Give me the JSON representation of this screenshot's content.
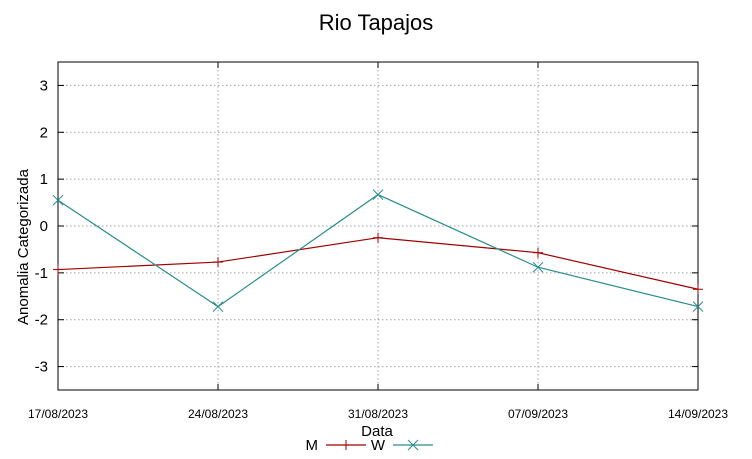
{
  "chart_data": {
    "type": "line",
    "title": "Rio Tapajos",
    "xlabel": "Data",
    "ylabel": "Anomalia Categorizada",
    "categories": [
      "17/08/2023",
      "24/08/2023",
      "31/08/2023",
      "07/09/2023",
      "14/09/2023"
    ],
    "yticks": [
      3,
      2,
      1,
      0,
      -1,
      -2,
      -3
    ],
    "ylim": [
      -3.5,
      3.5
    ],
    "grid": true,
    "legend_position": "bottom",
    "series": [
      {
        "name": "M",
        "color": "#a00000",
        "marker": "plus",
        "values": [
          -0.93,
          -0.77,
          -0.25,
          -0.57,
          -1.35
        ]
      },
      {
        "name": "W",
        "color": "#2a8d8d",
        "marker": "cross",
        "values": [
          0.55,
          -1.72,
          0.67,
          -0.88,
          -1.72
        ]
      }
    ]
  }
}
